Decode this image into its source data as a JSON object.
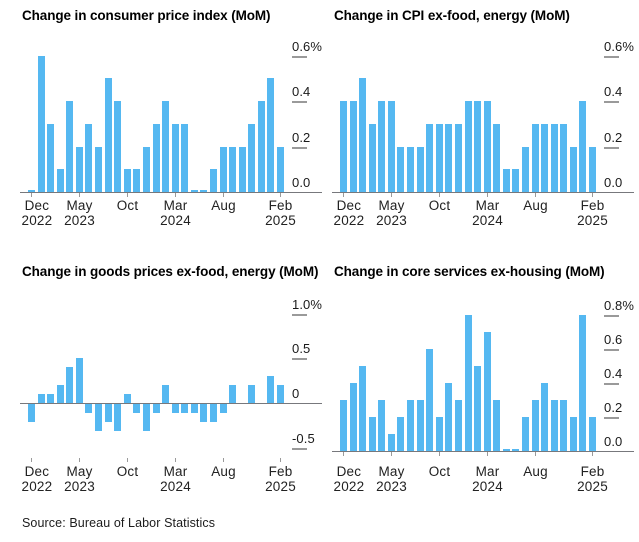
{
  "page": {
    "background": "#ffffff",
    "bar_color": "#55b8f1",
    "zero_line_color": "#77787c",
    "tick_mark_color": "#9a9a9a",
    "text_color": "#000000",
    "source_note": "Source: Bureau of Labor Statistics"
  },
  "months": [
    "Dec 2022",
    "Jan 2023",
    "Feb 2023",
    "Mar 2023",
    "Apr 2023",
    "May 2023",
    "Jun 2023",
    "Jul 2023",
    "Aug 2023",
    "Sep 2023",
    "Oct 2023",
    "Nov 2023",
    "Dec 2023",
    "Jan 2024",
    "Feb 2024",
    "Mar 2024",
    "Apr 2024",
    "May 2024",
    "Jun 2024",
    "Jul 2024",
    "Aug 2024",
    "Sep 2024",
    "Oct 2024",
    "Nov 2024",
    "Dec 2024",
    "Jan 2025",
    "Feb 2025"
  ],
  "x_ticks": [
    {
      "month_index": 0,
      "line1": "Dec",
      "line2": "2022"
    },
    {
      "month_index": 5,
      "line1": "May",
      "line2": "2023"
    },
    {
      "month_index": 10,
      "line1": "Oct",
      "line2": ""
    },
    {
      "month_index": 15,
      "line1": "Mar",
      "line2": "2024"
    },
    {
      "month_index": 20,
      "line1": "Aug",
      "line2": ""
    },
    {
      "month_index": 26,
      "line1": "Feb",
      "line2": "2025"
    }
  ],
  "chart_data": [
    {
      "id": "cpi-mom",
      "type": "bar",
      "title": "Change in consumer price index (MoM)",
      "xlabel": "",
      "ylabel": "%",
      "ylim": [
        0,
        0.66
      ],
      "grid": false,
      "y_ticks": [
        {
          "value": 0.6,
          "label": "0.6%"
        },
        {
          "value": 0.4,
          "label": "0.4"
        },
        {
          "value": 0.2,
          "label": "0.2"
        },
        {
          "value": 0.0,
          "label": "0.0"
        }
      ],
      "categories": [
        "Dec 2022",
        "Jan 2023",
        "Feb 2023",
        "Mar 2023",
        "Apr 2023",
        "May 2023",
        "Jun 2023",
        "Jul 2023",
        "Aug 2023",
        "Sep 2023",
        "Oct 2023",
        "Nov 2023",
        "Dec 2023",
        "Jan 2024",
        "Feb 2024",
        "Mar 2024",
        "Apr 2024",
        "May 2024",
        "Jun 2024",
        "Jul 2024",
        "Aug 2024",
        "Sep 2024",
        "Oct 2024",
        "Nov 2024",
        "Dec 2024",
        "Jan 2025",
        "Feb 2025"
      ],
      "values": [
        0.01,
        0.6,
        0.3,
        0.1,
        0.4,
        0.2,
        0.3,
        0.2,
        0.5,
        0.4,
        0.1,
        0.1,
        0.2,
        0.3,
        0.4,
        0.3,
        0.3,
        0.01,
        0.01,
        0.1,
        0.2,
        0.2,
        0.2,
        0.3,
        0.4,
        0.5,
        0.2
      ]
    },
    {
      "id": "core-cpi-mom",
      "type": "bar",
      "title": "Change in CPI ex-food, energy (MoM)",
      "xlabel": "",
      "ylabel": "%",
      "ylim": [
        0,
        0.66
      ],
      "grid": false,
      "y_ticks": [
        {
          "value": 0.6,
          "label": "0.6%"
        },
        {
          "value": 0.4,
          "label": "0.4"
        },
        {
          "value": 0.2,
          "label": "0.2"
        },
        {
          "value": 0.0,
          "label": "0.0"
        }
      ],
      "categories": [
        "Dec 2022",
        "Jan 2023",
        "Feb 2023",
        "Mar 2023",
        "Apr 2023",
        "May 2023",
        "Jun 2023",
        "Jul 2023",
        "Aug 2023",
        "Sep 2023",
        "Oct 2023",
        "Nov 2023",
        "Dec 2023",
        "Jan 2024",
        "Feb 2024",
        "Mar 2024",
        "Apr 2024",
        "May 2024",
        "Jun 2024",
        "Jul 2024",
        "Aug 2024",
        "Sep 2024",
        "Oct 2024",
        "Nov 2024",
        "Dec 2024",
        "Jan 2025",
        "Feb 2025"
      ],
      "values": [
        0.4,
        0.4,
        0.5,
        0.3,
        0.4,
        0.4,
        0.2,
        0.2,
        0.2,
        0.3,
        0.3,
        0.3,
        0.3,
        0.4,
        0.4,
        0.4,
        0.3,
        0.1,
        0.1,
        0.2,
        0.3,
        0.3,
        0.3,
        0.3,
        0.2,
        0.4,
        0.2
      ]
    },
    {
      "id": "core-goods-mom",
      "type": "bar",
      "title": "Change in goods prices ex-food, energy (MoM)",
      "xlabel": "",
      "ylabel": "%",
      "ylim": [
        -0.62,
        1.06
      ],
      "grid": false,
      "y_ticks": [
        {
          "value": 1.0,
          "label": "1.0%"
        },
        {
          "value": 0.5,
          "label": "0.5"
        },
        {
          "value": 0.0,
          "label": "0"
        },
        {
          "value": -0.5,
          "label": "-0.5"
        }
      ],
      "categories": [
        "Dec 2022",
        "Jan 2023",
        "Feb 2023",
        "Mar 2023",
        "Apr 2023",
        "May 2023",
        "Jun 2023",
        "Jul 2023",
        "Aug 2023",
        "Sep 2023",
        "Oct 2023",
        "Nov 2023",
        "Dec 2023",
        "Jan 2024",
        "Feb 2024",
        "Mar 2024",
        "Apr 2024",
        "May 2024",
        "Jun 2024",
        "Jul 2024",
        "Aug 2024",
        "Sep 2024",
        "Oct 2024",
        "Nov 2024",
        "Dec 2024",
        "Jan 2025",
        "Feb 2025"
      ],
      "values": [
        -0.2,
        0.1,
        0.1,
        0.2,
        0.4,
        0.5,
        -0.1,
        -0.3,
        -0.2,
        -0.3,
        0.1,
        -0.1,
        -0.3,
        -0.1,
        0.2,
        -0.1,
        -0.1,
        -0.1,
        -0.2,
        -0.2,
        -0.1,
        0.2,
        0,
        0.2,
        0,
        0.3,
        0.2
      ]
    },
    {
      "id": "core-services-ex-housing-mom",
      "type": "bar",
      "title": "Change in core services ex-housing (MoM)",
      "xlabel": "",
      "ylabel": "%",
      "ylim": [
        0,
        0.84
      ],
      "grid": false,
      "y_ticks": [
        {
          "value": 0.8,
          "label": "0.8%"
        },
        {
          "value": 0.6,
          "label": "0.6"
        },
        {
          "value": 0.4,
          "label": "0.4"
        },
        {
          "value": 0.2,
          "label": "0.2"
        },
        {
          "value": 0.0,
          "label": "0.0"
        }
      ],
      "categories": [
        "Dec 2022",
        "Jan 2023",
        "Feb 2023",
        "Mar 2023",
        "Apr 2023",
        "May 2023",
        "Jun 2023",
        "Jul 2023",
        "Aug 2023",
        "Sep 2023",
        "Oct 2023",
        "Nov 2023",
        "Dec 2023",
        "Jan 2024",
        "Feb 2024",
        "Mar 2024",
        "Apr 2024",
        "May 2024",
        "Jun 2024",
        "Jul 2024",
        "Aug 2024",
        "Sep 2024",
        "Oct 2024",
        "Nov 2024",
        "Dec 2024",
        "Jan 2025",
        "Feb 2025"
      ],
      "values": [
        0.3,
        0.4,
        0.5,
        0.2,
        0.3,
        0.1,
        0.2,
        0.3,
        0.3,
        0.6,
        0.2,
        0.4,
        0.3,
        0.8,
        0.5,
        0.7,
        0.3,
        0.01,
        0.01,
        0.2,
        0.3,
        0.4,
        0.3,
        0.3,
        0.2,
        0.8,
        0.2
      ]
    }
  ]
}
